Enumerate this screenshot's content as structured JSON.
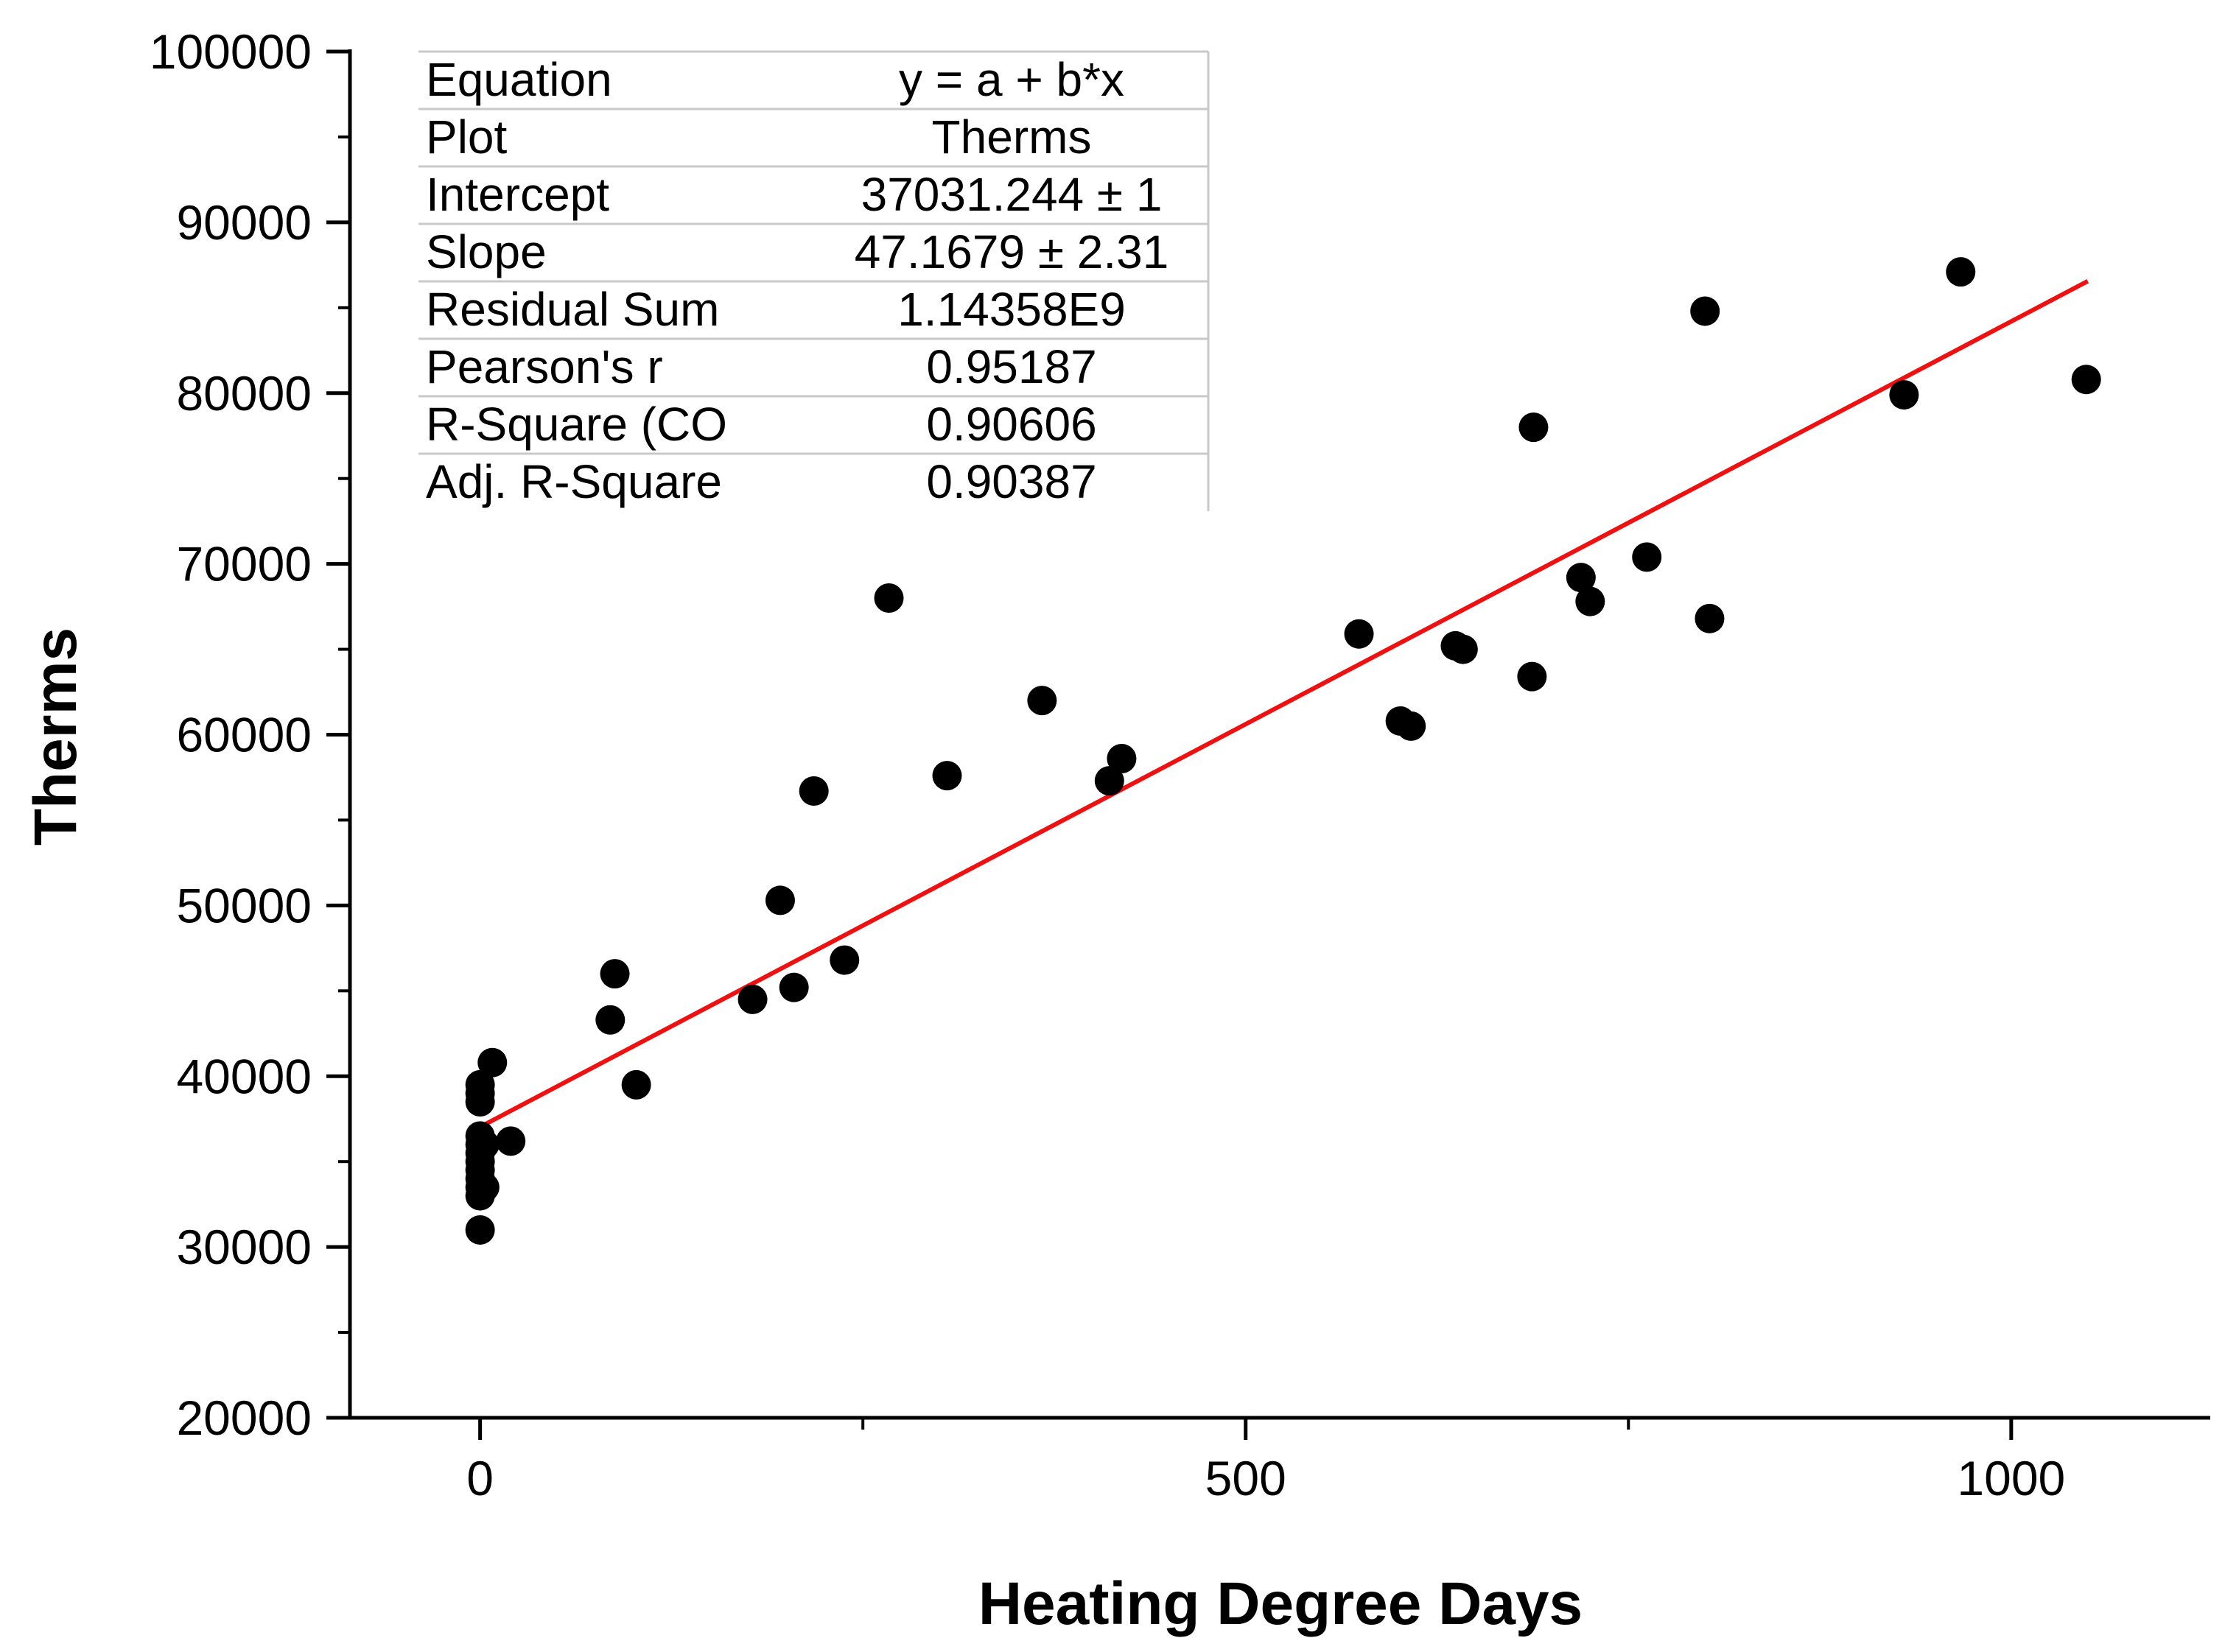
{
  "chart_data": {
    "type": "scatter",
    "title": "",
    "xlabel": "Heating Degree Days",
    "ylabel": "Therms",
    "xlim": [
      -85,
      1130
    ],
    "ylim": [
      20000,
      100000
    ],
    "x_ticks": [
      0,
      500,
      1000
    ],
    "x_tick_labels": [
      "0",
      "500",
      "1000"
    ],
    "x_minor_ticks": [
      250,
      750
    ],
    "y_ticks": [
      20000,
      30000,
      40000,
      50000,
      60000,
      70000,
      80000,
      90000,
      100000
    ],
    "y_tick_labels": [
      "20000",
      "30000",
      "40000",
      "50000",
      "60000",
      "70000",
      "80000",
      "90000",
      "100000"
    ],
    "y_minor_ticks": [
      25000,
      35000,
      45000,
      55000,
      65000,
      75000,
      85000,
      95000
    ],
    "grid": false,
    "colors": {
      "points": "#000000",
      "fit": "#ee1111",
      "table_line": "#c8c8c8"
    },
    "series": [
      {
        "name": "Therms",
        "x": [
          0,
          0,
          0,
          0,
          0,
          0,
          0,
          0,
          0,
          0,
          0,
          0,
          3,
          3,
          8,
          20,
          85,
          88,
          102,
          178,
          196,
          205,
          218,
          238,
          267,
          305,
          367,
          411,
          419,
          574,
          601,
          608,
          637,
          642,
          687,
          688,
          719,
          725,
          762,
          800,
          803,
          930,
          967,
          1049
        ],
        "y": [
          31000,
          33000,
          33500,
          34000,
          34500,
          35000,
          35500,
          36000,
          36500,
          38500,
          39000,
          39500,
          33500,
          36000,
          40800,
          36200,
          43300,
          46000,
          39500,
          44500,
          50300,
          45200,
          56700,
          46800,
          68000,
          57600,
          62000,
          57300,
          58600,
          65900,
          60800,
          60500,
          65200,
          65000,
          63400,
          78000,
          69200,
          67800,
          70400,
          84800,
          66800,
          79900,
          87100,
          80800
        ]
      }
    ],
    "fit": {
      "name": "Linear fit",
      "intercept": 37031.244,
      "slope": 47.1679,
      "x_range": [
        0,
        1050
      ]
    },
    "stats_table": [
      {
        "label": "Equation",
        "value": "y = a + b*x"
      },
      {
        "label": "Plot",
        "value": "Therms"
      },
      {
        "label": "Intercept",
        "value": "37031.244 ± 1"
      },
      {
        "label": "Slope",
        "value": "47.1679 ± 2.31"
      },
      {
        "label": "Residual Sum",
        "value": "1.14358E9"
      },
      {
        "label": "Pearson's r",
        "value": "0.95187"
      },
      {
        "label": "R-Square (CO",
        "value": "0.90606"
      },
      {
        "label": "Adj. R-Square",
        "value": "0.90387"
      }
    ]
  }
}
